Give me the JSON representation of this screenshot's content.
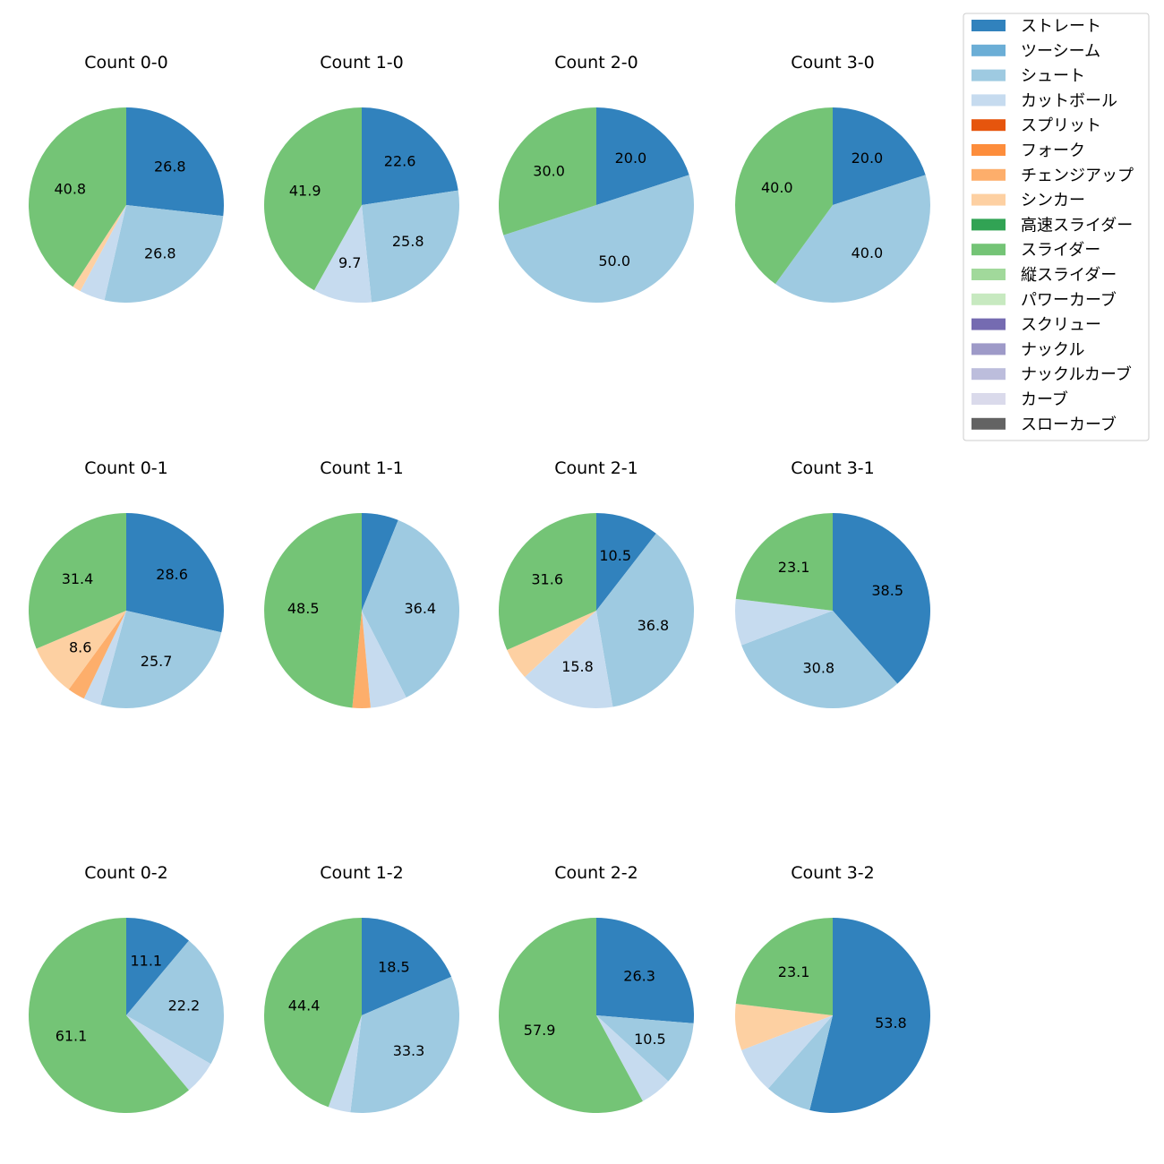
{
  "chart_data": {
    "type": "pie",
    "pitch_types": [
      {
        "name": "ストレート",
        "color": "#3182bd"
      },
      {
        "name": "ツーシーム",
        "color": "#6baed6"
      },
      {
        "name": "シュート",
        "color": "#9ecae1"
      },
      {
        "name": "カットボール",
        "color": "#c6dbef"
      },
      {
        "name": "スプリット",
        "color": "#e6550d"
      },
      {
        "name": "フォーク",
        "color": "#fd8d3c"
      },
      {
        "name": "チェンジアップ",
        "color": "#fdae6b"
      },
      {
        "name": "シンカー",
        "color": "#fdd0a2"
      },
      {
        "name": "高速スライダー",
        "color": "#31a354"
      },
      {
        "name": "スライダー",
        "color": "#74c476"
      },
      {
        "name": "縦スライダー",
        "color": "#a1d99b"
      },
      {
        "name": "パワーカーブ",
        "color": "#c7e9c0"
      },
      {
        "name": "スクリュー",
        "color": "#756bb1"
      },
      {
        "name": "ナックル",
        "color": "#9e9ac8"
      },
      {
        "name": "ナックルカーブ",
        "color": "#bcbddc"
      },
      {
        "name": "カーブ",
        "color": "#dadaeb"
      },
      {
        "name": "スローカーブ",
        "color": "#636363"
      }
    ],
    "pies": [
      {
        "title": "Count 0-0",
        "slices": [
          {
            "type": "ストレート",
            "value": 26.8
          },
          {
            "type": "シュート",
            "value": 26.8
          },
          {
            "type": "カットボール",
            "value": 4.2
          },
          {
            "type": "シンカー",
            "value": 1.4
          },
          {
            "type": "スライダー",
            "value": 40.8
          }
        ]
      },
      {
        "title": "Count 1-0",
        "slices": [
          {
            "type": "ストレート",
            "value": 22.6
          },
          {
            "type": "シュート",
            "value": 25.8
          },
          {
            "type": "カットボール",
            "value": 9.7
          },
          {
            "type": "スライダー",
            "value": 41.9
          }
        ]
      },
      {
        "title": "Count 2-0",
        "slices": [
          {
            "type": "ストレート",
            "value": 20.0
          },
          {
            "type": "シュート",
            "value": 50.0
          },
          {
            "type": "スライダー",
            "value": 30.0
          }
        ]
      },
      {
        "title": "Count 3-0",
        "slices": [
          {
            "type": "ストレート",
            "value": 20.0
          },
          {
            "type": "シュート",
            "value": 40.0
          },
          {
            "type": "スライダー",
            "value": 40.0
          }
        ]
      },
      {
        "title": "Count 0-1",
        "slices": [
          {
            "type": "ストレート",
            "value": 28.6
          },
          {
            "type": "シュート",
            "value": 25.7
          },
          {
            "type": "カットボール",
            "value": 2.9
          },
          {
            "type": "チェンジアップ",
            "value": 2.9
          },
          {
            "type": "シンカー",
            "value": 8.6
          },
          {
            "type": "スライダー",
            "value": 31.4
          }
        ]
      },
      {
        "title": "Count 1-1",
        "slices": [
          {
            "type": "ストレート",
            "value": 6.1
          },
          {
            "type": "シュート",
            "value": 36.4
          },
          {
            "type": "カットボール",
            "value": 6.1
          },
          {
            "type": "チェンジアップ",
            "value": 3.0
          },
          {
            "type": "スライダー",
            "value": 48.5
          }
        ]
      },
      {
        "title": "Count 2-1",
        "slices": [
          {
            "type": "ストレート",
            "value": 10.5
          },
          {
            "type": "シュート",
            "value": 36.8
          },
          {
            "type": "カットボール",
            "value": 15.8
          },
          {
            "type": "シンカー",
            "value": 5.3
          },
          {
            "type": "スライダー",
            "value": 31.6
          }
        ]
      },
      {
        "title": "Count 3-1",
        "slices": [
          {
            "type": "ストレート",
            "value": 38.5
          },
          {
            "type": "シュート",
            "value": 30.8
          },
          {
            "type": "カットボール",
            "value": 7.7
          },
          {
            "type": "スライダー",
            "value": 23.1
          }
        ]
      },
      {
        "title": "Count 0-2",
        "slices": [
          {
            "type": "ストレート",
            "value": 11.1
          },
          {
            "type": "シュート",
            "value": 22.2
          },
          {
            "type": "カットボール",
            "value": 5.6
          },
          {
            "type": "スライダー",
            "value": 61.1
          }
        ]
      },
      {
        "title": "Count 1-2",
        "slices": [
          {
            "type": "ストレート",
            "value": 18.5
          },
          {
            "type": "シュート",
            "value": 33.3
          },
          {
            "type": "カットボール",
            "value": 3.7
          },
          {
            "type": "スライダー",
            "value": 44.4
          }
        ]
      },
      {
        "title": "Count 2-2",
        "slices": [
          {
            "type": "ストレート",
            "value": 26.3
          },
          {
            "type": "シュート",
            "value": 10.5
          },
          {
            "type": "カットボール",
            "value": 5.3
          },
          {
            "type": "スライダー",
            "value": 57.9
          }
        ]
      },
      {
        "title": "Count 3-2",
        "slices": [
          {
            "type": "ストレート",
            "value": 53.8
          },
          {
            "type": "シュート",
            "value": 7.7
          },
          {
            "type": "カットボール",
            "value": 7.7
          },
          {
            "type": "シンカー",
            "value": 7.7
          },
          {
            "type": "スライダー",
            "value": 23.1
          }
        ]
      }
    ],
    "label_threshold": 8,
    "start_angle": "12 o'clock",
    "direction": "clockwise",
    "legend_position": "top-right"
  }
}
